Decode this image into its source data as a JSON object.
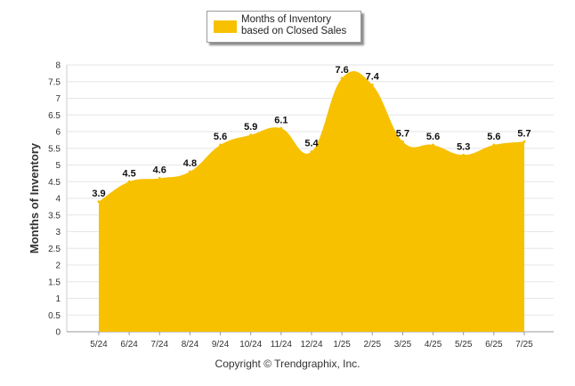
{
  "chart_data": {
    "type": "area",
    "title": "",
    "xlabel": "",
    "ylabel": "Months of Inventory",
    "categories": [
      "5/24",
      "6/24",
      "7/24",
      "8/24",
      "9/24",
      "10/24",
      "11/24",
      "12/24",
      "1/25",
      "2/25",
      "3/25",
      "4/25",
      "5/25",
      "6/25",
      "7/25"
    ],
    "series": [
      {
        "name": "Months of Inventory based on Closed Sales",
        "values": [
          3.9,
          4.5,
          4.6,
          4.8,
          5.6,
          5.9,
          6.1,
          5.4,
          7.6,
          7.4,
          5.7,
          5.6,
          5.3,
          5.6,
          5.7
        ]
      }
    ],
    "ylim": [
      0,
      8
    ],
    "yticks": [
      "0",
      "0.5",
      "1",
      "1.5",
      "2",
      "2.5",
      "3",
      "3.5",
      "4",
      "4.5",
      "5",
      "5.5",
      "6",
      "6.5",
      "7",
      "7.5",
      "8"
    ],
    "grid": true,
    "legend": "top-center",
    "colors": {
      "fill": "#F7C100",
      "grid": "#e6e6e6",
      "axis": "#cccccc"
    }
  },
  "footer": {
    "copyright": "Copyright © Trendgraphix, Inc."
  }
}
